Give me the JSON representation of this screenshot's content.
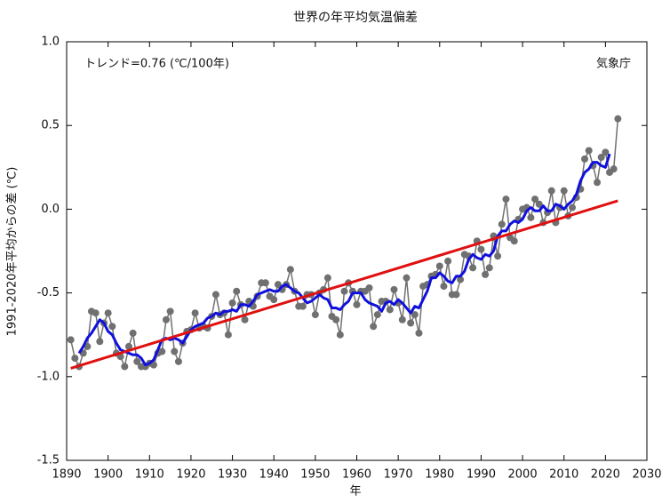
{
  "chart_data": {
    "type": "line",
    "title": "世界の年平均気温偏差",
    "ylabel": "1991-2020年平均からの差 (℃)",
    "xlabel": "年",
    "annotations": [
      "トレンド=0.76 (℃/100年)",
      "気象庁"
    ],
    "xlim": [
      1890,
      2030
    ],
    "xticks": [
      1890,
      1900,
      1910,
      1920,
      1930,
      1940,
      1950,
      1960,
      1970,
      1980,
      1990,
      2000,
      2010,
      2020,
      2030
    ],
    "ylim": [
      -1.5,
      1.0
    ],
    "yticks": [
      {
        "value": -1.5,
        "label": "-1.5"
      },
      {
        "value": -1.0,
        "label": "-1.0"
      },
      -0.5,
      {
        "value": 0.0,
        "label": "0.0"
      },
      0.5,
      {
        "value": 1.0,
        "label": "1.0"
      }
    ],
    "grid": false,
    "x": [
      1891,
      1892,
      1893,
      1894,
      1895,
      1896,
      1897,
      1898,
      1899,
      1900,
      1901,
      1902,
      1903,
      1904,
      1905,
      1906,
      1907,
      1908,
      1909,
      1910,
      1911,
      1912,
      1913,
      1914,
      1915,
      1916,
      1917,
      1918,
      1919,
      1920,
      1921,
      1922,
      1923,
      1924,
      1925,
      1926,
      1927,
      1928,
      1929,
      1930,
      1931,
      1932,
      1933,
      1934,
      1935,
      1936,
      1937,
      1938,
      1939,
      1940,
      1941,
      1942,
      1943,
      1944,
      1945,
      1946,
      1947,
      1948,
      1949,
      1950,
      1951,
      1952,
      1953,
      1954,
      1955,
      1956,
      1957,
      1958,
      1959,
      1960,
      1961,
      1962,
      1963,
      1964,
      1965,
      1966,
      1967,
      1968,
      1969,
      1970,
      1971,
      1972,
      1973,
      1974,
      1975,
      1976,
      1977,
      1978,
      1979,
      1980,
      1981,
      1982,
      1983,
      1984,
      1985,
      1986,
      1987,
      1988,
      1989,
      1990,
      1991,
      1992,
      1993,
      1994,
      1995,
      1996,
      1997,
      1998,
      1999,
      2000,
      2001,
      2002,
      2003,
      2004,
      2005,
      2006,
      2007,
      2008,
      2009,
      2010,
      2011,
      2012,
      2013,
      2014,
      2015,
      2016,
      2017,
      2018,
      2019,
      2020,
      2021,
      2022,
      2023
    ],
    "series": [
      {
        "color": "#707070",
        "markers": true,
        "width": 1.5,
        "values": [
          -0.78,
          -0.89,
          -0.94,
          -0.86,
          -0.82,
          -0.61,
          -0.62,
          -0.79,
          -0.68,
          -0.62,
          -0.7,
          -0.86,
          -0.88,
          -0.94,
          -0.82,
          -0.74,
          -0.91,
          -0.94,
          -0.94,
          -0.92,
          -0.93,
          -0.86,
          -0.85,
          -0.66,
          -0.61,
          -0.85,
          -0.91,
          -0.8,
          -0.73,
          -0.72,
          -0.62,
          -0.71,
          -0.7,
          -0.71,
          -0.64,
          -0.51,
          -0.63,
          -0.62,
          -0.75,
          -0.56,
          -0.49,
          -0.57,
          -0.66,
          -0.55,
          -0.58,
          -0.52,
          -0.44,
          -0.44,
          -0.52,
          -0.54,
          -0.45,
          -0.48,
          -0.45,
          -0.36,
          -0.49,
          -0.58,
          -0.58,
          -0.51,
          -0.51,
          -0.63,
          -0.5,
          -0.48,
          -0.41,
          -0.64,
          -0.66,
          -0.75,
          -0.49,
          -0.44,
          -0.49,
          -0.57,
          -0.49,
          -0.49,
          -0.47,
          -0.7,
          -0.63,
          -0.55,
          -0.55,
          -0.6,
          -0.48,
          -0.56,
          -0.66,
          -0.41,
          -0.68,
          -0.63,
          -0.74,
          -0.46,
          -0.45,
          -0.4,
          -0.39,
          -0.34,
          -0.46,
          -0.31,
          -0.51,
          -0.51,
          -0.42,
          -0.27,
          -0.28,
          -0.35,
          -0.19,
          -0.24,
          -0.39,
          -0.35,
          -0.16,
          -0.28,
          -0.09,
          0.06,
          -0.17,
          -0.19,
          -0.06,
          0.0,
          0.01,
          -0.05,
          0.06,
          0.03,
          -0.08,
          -0.02,
          0.11,
          -0.08,
          0.01,
          0.11,
          -0.04,
          0.01,
          0.07,
          0.12,
          0.3,
          0.35,
          0.26,
          0.16,
          0.31,
          0.34,
          0.22,
          0.24,
          0.54
        ]
      },
      {
        "color": "#1010dd",
        "markers": false,
        "width": 3,
        "values": [
          null,
          null,
          -0.86,
          -0.82,
          -0.77,
          -0.74,
          -0.7,
          -0.66,
          -0.68,
          -0.73,
          -0.75,
          -0.8,
          -0.84,
          -0.85,
          -0.86,
          -0.87,
          -0.87,
          -0.89,
          -0.93,
          -0.92,
          -0.9,
          -0.84,
          -0.78,
          -0.77,
          -0.78,
          -0.77,
          -0.78,
          -0.8,
          -0.76,
          -0.72,
          -0.7,
          -0.69,
          -0.68,
          -0.65,
          -0.64,
          -0.62,
          -0.63,
          -0.61,
          -0.61,
          -0.6,
          -0.61,
          -0.57,
          -0.57,
          -0.58,
          -0.55,
          -0.51,
          -0.5,
          -0.49,
          -0.48,
          -0.49,
          -0.49,
          -0.46,
          -0.45,
          -0.47,
          -0.49,
          -0.5,
          -0.53,
          -0.56,
          -0.55,
          -0.53,
          -0.51,
          -0.53,
          -0.54,
          -0.59,
          -0.59,
          -0.6,
          -0.57,
          -0.55,
          -0.5,
          -0.5,
          -0.5,
          -0.54,
          -0.56,
          -0.57,
          -0.58,
          -0.61,
          -0.56,
          -0.55,
          -0.57,
          -0.54,
          -0.56,
          -0.59,
          -0.62,
          -0.58,
          -0.59,
          -0.54,
          -0.49,
          -0.41,
          -0.41,
          -0.38,
          -0.4,
          -0.43,
          -0.44,
          -0.4,
          -0.4,
          -0.37,
          -0.3,
          -0.27,
          -0.29,
          -0.3,
          -0.27,
          -0.28,
          -0.25,
          -0.16,
          -0.13,
          -0.13,
          -0.09,
          -0.07,
          -0.08,
          -0.06,
          -0.01,
          0.01,
          -0.01,
          -0.01,
          0.02,
          -0.01,
          -0.01,
          0.03,
          0.02,
          0.0,
          0.03,
          0.05,
          0.09,
          0.17,
          0.22,
          0.24,
          0.28,
          0.28,
          0.26,
          0.25,
          0.33,
          null,
          null
        ]
      }
    ],
    "trend": {
      "color": "#e01010",
      "x": [
        1891,
        2023
      ],
      "values": [
        -0.95,
        0.05
      ]
    }
  }
}
